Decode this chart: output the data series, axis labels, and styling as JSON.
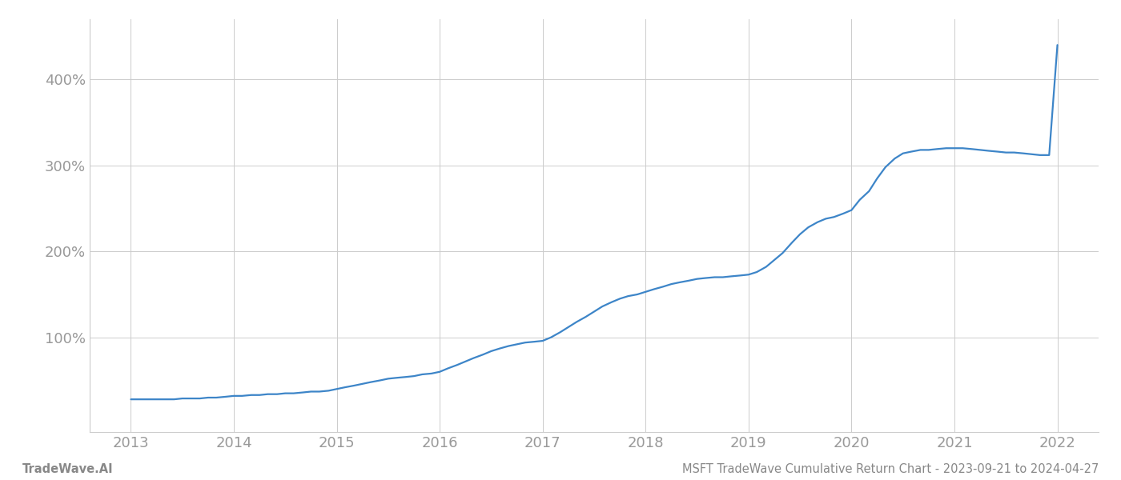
{
  "title": "MSFT TradeWave Cumulative Return Chart - 2023-09-21 to 2024-04-27",
  "watermark": "TradeWave.AI",
  "x_years": [
    2013,
    2014,
    2015,
    2016,
    2017,
    2018,
    2019,
    2020,
    2021,
    2022
  ],
  "line_color": "#3d85c8",
  "line_width": 1.6,
  "background_color": "#ffffff",
  "grid_color": "#cccccc",
  "tick_color": "#999999",
  "title_color": "#888888",
  "watermark_color": "#888888",
  "y_ticks": [
    100,
    200,
    300,
    400
  ],
  "ylim": [
    -10,
    470
  ],
  "xlim": [
    2012.6,
    2022.4
  ],
  "data_x": [
    2013.0,
    2013.08,
    2013.17,
    2013.25,
    2013.33,
    2013.42,
    2013.5,
    2013.58,
    2013.67,
    2013.75,
    2013.83,
    2013.92,
    2014.0,
    2014.08,
    2014.17,
    2014.25,
    2014.33,
    2014.42,
    2014.5,
    2014.58,
    2014.67,
    2014.75,
    2014.83,
    2014.92,
    2015.0,
    2015.08,
    2015.17,
    2015.25,
    2015.33,
    2015.42,
    2015.5,
    2015.58,
    2015.67,
    2015.75,
    2015.83,
    2015.92,
    2016.0,
    2016.08,
    2016.17,
    2016.25,
    2016.33,
    2016.42,
    2016.5,
    2016.58,
    2016.67,
    2016.75,
    2016.83,
    2016.92,
    2017.0,
    2017.08,
    2017.17,
    2017.25,
    2017.33,
    2017.42,
    2017.5,
    2017.58,
    2017.67,
    2017.75,
    2017.83,
    2017.92,
    2018.0,
    2018.08,
    2018.17,
    2018.25,
    2018.33,
    2018.42,
    2018.5,
    2018.58,
    2018.67,
    2018.75,
    2018.83,
    2018.92,
    2019.0,
    2019.08,
    2019.17,
    2019.25,
    2019.33,
    2019.42,
    2019.5,
    2019.58,
    2019.67,
    2019.75,
    2019.83,
    2019.92,
    2020.0,
    2020.08,
    2020.17,
    2020.25,
    2020.33,
    2020.42,
    2020.5,
    2020.58,
    2020.67,
    2020.75,
    2020.83,
    2020.92,
    2021.0,
    2021.08,
    2021.17,
    2021.25,
    2021.33,
    2021.42,
    2021.5,
    2021.58,
    2021.67,
    2021.75,
    2021.83,
    2021.92,
    2022.0
  ],
  "data_y": [
    28,
    28,
    28,
    28,
    28,
    28,
    29,
    29,
    29,
    30,
    30,
    31,
    32,
    32,
    33,
    33,
    34,
    34,
    35,
    35,
    36,
    37,
    37,
    38,
    40,
    42,
    44,
    46,
    48,
    50,
    52,
    53,
    54,
    55,
    57,
    58,
    60,
    64,
    68,
    72,
    76,
    80,
    84,
    87,
    90,
    92,
    94,
    95,
    96,
    100,
    106,
    112,
    118,
    124,
    130,
    136,
    141,
    145,
    148,
    150,
    153,
    156,
    159,
    162,
    164,
    166,
    168,
    169,
    170,
    170,
    171,
    172,
    173,
    176,
    182,
    190,
    198,
    210,
    220,
    228,
    234,
    238,
    240,
    244,
    248,
    260,
    270,
    285,
    298,
    308,
    314,
    316,
    318,
    318,
    319,
    320,
    320,
    320,
    319,
    318,
    317,
    316,
    315,
    315,
    314,
    313,
    312,
    312,
    440
  ]
}
